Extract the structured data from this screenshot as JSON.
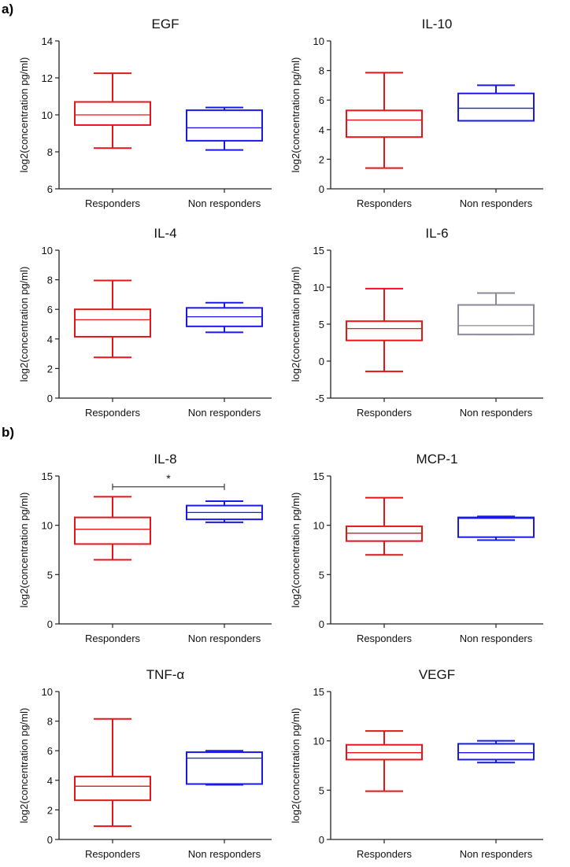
{
  "panel_labels": [
    "a)",
    "b)"
  ],
  "chart_data": [
    {
      "type": "box",
      "title": "EGF",
      "ylabel": "log2(concentration pg/ml)",
      "ylim": [
        6,
        14
      ],
      "yticks": [
        6,
        8,
        10,
        12,
        14
      ],
      "categories": [
        "Responders",
        "Non responders"
      ],
      "series": [
        {
          "name": "Responders",
          "color": "#e8141a",
          "min": 8.2,
          "q1": 9.45,
          "median": 10.0,
          "q3": 10.7,
          "max": 12.25
        },
        {
          "name": "Non responders",
          "color": "#1a1ae6",
          "min": 8.1,
          "q1": 8.6,
          "median": 9.3,
          "q3": 10.25,
          "max": 10.4
        }
      ]
    },
    {
      "type": "box",
      "title": "IL-10",
      "ylabel": "log2(concentration pg/ml)",
      "ylim": [
        0,
        10
      ],
      "yticks": [
        0,
        2,
        4,
        6,
        8,
        10
      ],
      "categories": [
        "Responders",
        "Non responders"
      ],
      "series": [
        {
          "name": "Responders",
          "color": "#e8141a",
          "min": 1.4,
          "q1": 3.5,
          "median": 4.65,
          "q3": 5.3,
          "max": 7.85
        },
        {
          "name": "Non responders",
          "color": "#1a1ae6",
          "min": 4.6,
          "q1": 4.6,
          "median": 5.45,
          "q3": 6.45,
          "max": 7.0
        }
      ]
    },
    {
      "type": "box",
      "title": "IL-4",
      "ylabel": "log2(concentration pg/ml)",
      "ylim": [
        0,
        10
      ],
      "yticks": [
        0,
        2,
        4,
        6,
        8,
        10
      ],
      "categories": [
        "Responders",
        "Non responders"
      ],
      "series": [
        {
          "name": "Responders",
          "color": "#e8141a",
          "min": 2.75,
          "q1": 4.15,
          "median": 5.3,
          "q3": 6.0,
          "max": 7.95
        },
        {
          "name": "Non responders",
          "color": "#1a1ae6",
          "min": 4.45,
          "q1": 4.85,
          "median": 5.5,
          "q3": 6.1,
          "max": 6.45
        }
      ]
    },
    {
      "type": "box",
      "title": "IL-6",
      "ylabel": "log2(concentration pg/ml)",
      "ylim": [
        -5,
        15
      ],
      "yticks": [
        -5,
        0,
        5,
        10,
        15
      ],
      "categories": [
        "Responders",
        "Non responders"
      ],
      "series": [
        {
          "name": "Responders",
          "color": "#e8141a",
          "min": -1.4,
          "q1": 2.8,
          "median": 4.4,
          "q3": 5.4,
          "max": 9.8
        },
        {
          "name": "Non responders",
          "color": "#8a8a9a",
          "min": 3.6,
          "q1": 3.6,
          "median": 4.8,
          "q3": 7.6,
          "max": 9.2
        }
      ]
    },
    {
      "type": "box",
      "title": "IL-8",
      "ylabel": "log2(concentration pg/ml)",
      "ylim": [
        0,
        15
      ],
      "yticks": [
        0,
        5,
        10,
        15
      ],
      "categories": [
        "Responders",
        "Non responders"
      ],
      "significance": {
        "label": "*",
        "level": 13.9
      },
      "series": [
        {
          "name": "Responders",
          "color": "#e8141a",
          "min": 6.5,
          "q1": 8.1,
          "median": 9.6,
          "q3": 10.8,
          "max": 12.9
        },
        {
          "name": "Non responders",
          "color": "#1a1ae6",
          "min": 10.3,
          "q1": 10.6,
          "median": 11.3,
          "q3": 12.0,
          "max": 12.45
        }
      ]
    },
    {
      "type": "box",
      "title": "MCP-1",
      "ylabel": "log2(concentration pg/ml)",
      "ylim": [
        0,
        15
      ],
      "yticks": [
        0,
        5,
        10,
        15
      ],
      "categories": [
        "Responders",
        "Non responders"
      ],
      "series": [
        {
          "name": "Responders",
          "color": "#e8141a",
          "min": 7.0,
          "q1": 8.4,
          "median": 9.2,
          "q3": 9.9,
          "max": 12.8
        },
        {
          "name": "Non responders",
          "color": "#1a1ae6",
          "min": 8.5,
          "q1": 8.8,
          "median": 10.7,
          "q3": 10.8,
          "max": 10.9
        }
      ]
    },
    {
      "type": "box",
      "title": "TNF-α",
      "ylabel": "log2(concentration pg/ml)",
      "ylim": [
        0,
        10
      ],
      "yticks": [
        0,
        2,
        4,
        6,
        8,
        10
      ],
      "categories": [
        "Responders",
        "Non responders"
      ],
      "series": [
        {
          "name": "Responders",
          "color": "#e8141a",
          "min": 0.9,
          "q1": 2.65,
          "median": 3.6,
          "q3": 4.25,
          "max": 8.15
        },
        {
          "name": "Non responders",
          "color": "#1a1ae6",
          "min": 3.7,
          "q1": 3.75,
          "median": 5.5,
          "q3": 5.9,
          "max": 6.0
        }
      ]
    },
    {
      "type": "box",
      "title": "VEGF",
      "ylabel": "log2(concentration pg/ml)",
      "ylim": [
        0,
        15
      ],
      "yticks": [
        0,
        5,
        10,
        15
      ],
      "categories": [
        "Responders",
        "Non responders"
      ],
      "series": [
        {
          "name": "Responders",
          "color": "#e8141a",
          "min": 4.9,
          "q1": 8.1,
          "median": 8.8,
          "q3": 9.6,
          "max": 11.0
        },
        {
          "name": "Non responders",
          "color": "#1a1ae6",
          "min": 7.8,
          "q1": 8.1,
          "median": 8.8,
          "q3": 9.7,
          "max": 10.0
        }
      ]
    }
  ]
}
